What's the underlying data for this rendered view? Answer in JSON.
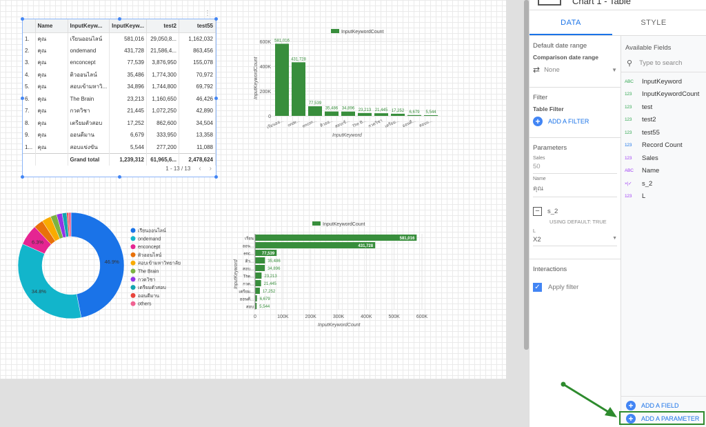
{
  "table": {
    "headers": [
      "Name",
      "InputKeyw...",
      "InputKeyw...",
      "test2",
      "test55"
    ],
    "rows": [
      [
        "1.",
        "คุณ",
        "เรียนออนไลน์",
        "581,016",
        "29,050,8...",
        "1,162,032"
      ],
      [
        "2.",
        "คุณ",
        "ondemand",
        "431,728",
        "21,586,4...",
        "863,456"
      ],
      [
        "3.",
        "คุณ",
        "enconcept",
        "77,539",
        "3,876,950",
        "155,078"
      ],
      [
        "4.",
        "คุณ",
        "ติวออนไลน์",
        "35,486",
        "1,774,300",
        "70,972"
      ],
      [
        "5.",
        "คุณ",
        "สอบเข้ามหาวิ...",
        "34,896",
        "1,744,800",
        "69,792"
      ],
      [
        "6.",
        "คุณ",
        "The Brain",
        "23,213",
        "1,160,650",
        "46,426"
      ],
      [
        "7.",
        "คุณ",
        "กวดวิชา",
        "21,445",
        "1,072,250",
        "42,890"
      ],
      [
        "8.",
        "คุณ",
        "เตรียมตัวสอบ",
        "17,252",
        "862,600",
        "34,504"
      ],
      [
        "9.",
        "คุณ",
        "ออนดีมาน",
        "6,679",
        "333,950",
        "13,358"
      ],
      [
        "1...",
        "คุณ",
        "สอบแข่งขัน",
        "5,544",
        "277,200",
        "11,088"
      ]
    ],
    "total": {
      "label": "Grand total",
      "values": [
        "1,239,312",
        "61,965,6...",
        "2,478,624"
      ]
    },
    "pager": "1 - 13 / 13",
    "prev": "‹",
    "next": "›"
  },
  "chart_data": [
    {
      "type": "bar",
      "legend": "InputKeywordCount",
      "xlabel": "InputKeyword",
      "ylabel": "InputKeywordCount",
      "ylim": [
        0,
        600000
      ],
      "yticks": [
        "0",
        "200K",
        "400K",
        "600K"
      ],
      "categories": [
        "เรียนออ...",
        "onde...",
        "encon...",
        "ติวออ...",
        "สอบเข้...",
        "The B...",
        "กวดวิชา",
        "เตรียม...",
        "ออนดี...",
        "สอบแ..."
      ],
      "values": [
        581016,
        431728,
        77539,
        35486,
        34896,
        23213,
        21445,
        17252,
        6679,
        5544
      ],
      "value_labels": [
        "581,016",
        "431,728",
        "77,539",
        "35,486",
        "34,896",
        "23,213",
        "21,445",
        "17,252",
        "6,679",
        "5,544"
      ],
      "color": "#388e3c"
    },
    {
      "type": "pie",
      "donut": true,
      "legend": [
        "เรียนออนไลน์",
        "ondemand",
        "enconcept",
        "ติวออนไลน์",
        "สอบเข้ามหาวิทยาลัย",
        "The Brain",
        "กวดวิชา",
        "เตรียมตัวสอบ",
        "ออนดีมาน",
        "others"
      ],
      "values": [
        46.9,
        34.8,
        6.3,
        2.9,
        2.8,
        1.9,
        1.7,
        1.4,
        0.5,
        0.8
      ],
      "slice_labels": [
        "46.9%",
        "34.8%",
        "6.3%",
        "",
        "",
        "",
        "",
        "",
        "",
        ""
      ],
      "colors": [
        "#1a73e8",
        "#12b5cb",
        "#e52592",
        "#e8710a",
        "#f9ab00",
        "#7cb342",
        "#9334e6",
        "#12a4af",
        "#e8453c",
        "#f06292"
      ]
    },
    {
      "type": "bar",
      "orientation": "horizontal",
      "legend": "InputKeywordCount",
      "xlabel": "InputKeywordCount",
      "ylabel": "InputKeyword",
      "xlim": [
        0,
        600000
      ],
      "xticks": [
        "0",
        "100K",
        "200K",
        "300K",
        "400K",
        "500K",
        "600K"
      ],
      "categories": [
        "เรียน",
        "ออน...",
        "enc...",
        "ติว...",
        "สอบ...",
        "The...",
        "กวด...",
        "เตรียม...",
        "ออนดี...",
        "สอบ"
      ],
      "values": [
        581016,
        431728,
        77539,
        35486,
        34896,
        23213,
        21445,
        17252,
        6679,
        5544
      ],
      "value_labels": [
        "581,016",
        "431,728",
        "77,539",
        "35,486",
        "34,896",
        "23,213",
        "21,445",
        "17,252",
        "6,679",
        "5,544"
      ],
      "color": "#388e3c"
    }
  ],
  "panel": {
    "header_title": "Chart 1 - Table",
    "tabs": [
      "DATA",
      "STYLE"
    ],
    "default_date_range": "Default date range",
    "comparison_label": "Comparison date range",
    "comparison_value": "None",
    "filter_title": "Filter",
    "table_filter": "Table Filter",
    "add_filter": "ADD A FILTER",
    "parameters_title": "Parameters",
    "param1_name": "Sales",
    "param1_value": "50",
    "param2_name": "Name",
    "param2_value": "คุณ",
    "param3_name": "s_2",
    "param3_note": "USING DEFAULT: TRUE",
    "param4_name": "L",
    "param4_value": "X2",
    "interactions_title": "Interactions",
    "apply_filter": "Apply filter",
    "available_fields": "Available Fields",
    "search_placeholder": "Type to search",
    "fields": [
      {
        "type": "ABC",
        "name": "InputKeyword",
        "color": "#34a853"
      },
      {
        "type": "123",
        "name": "InputKeywordCount",
        "color": "#34a853"
      },
      {
        "type": "123",
        "name": "test",
        "color": "#34a853"
      },
      {
        "type": "123",
        "name": "test2",
        "color": "#34a853"
      },
      {
        "type": "123",
        "name": "test55",
        "color": "#34a853"
      },
      {
        "type": "123",
        "name": "Record Count",
        "color": "#1a73e8"
      },
      {
        "type": "123",
        "name": "Sales",
        "color": "#a142f4"
      },
      {
        "type": "ABC",
        "name": "Name",
        "color": "#a142f4"
      },
      {
        "type": "×|✓",
        "name": "s_2",
        "color": "#a142f4"
      },
      {
        "type": "123",
        "name": "L",
        "color": "#a142f4"
      }
    ],
    "add_field": "ADD A FIELD",
    "add_parameter": "ADD A PARAMETER"
  }
}
